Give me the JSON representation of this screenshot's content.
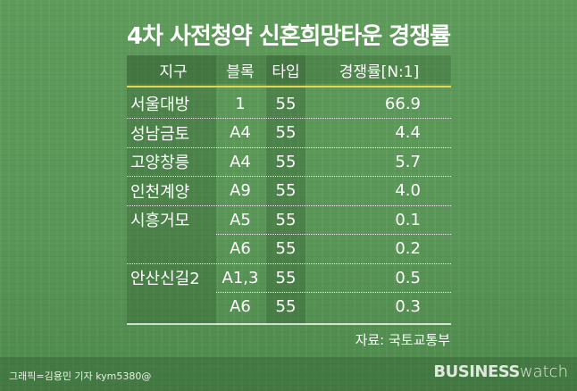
{
  "title": "4차 사전청약 신혼희망타운 경쟁률",
  "table": {
    "headers": [
      "지구",
      "블록",
      "타입",
      "경쟁률[N:1]"
    ],
    "rows": [
      {
        "district": "서울대방",
        "block": "1",
        "type": "55",
        "ratio": "66.9"
      },
      {
        "district": "성남금토",
        "block": "A4",
        "type": "55",
        "ratio": "4.4"
      },
      {
        "district": "고양창릉",
        "block": "A4",
        "type": "55",
        "ratio": "5.7"
      },
      {
        "district": "인천계양",
        "block": "A9",
        "type": "55",
        "ratio": "4.0"
      },
      {
        "district": "시흥거모",
        "block": "A5",
        "type": "55",
        "ratio": "0.1"
      },
      {
        "district": "",
        "block": "A6",
        "type": "55",
        "ratio": "0.2"
      },
      {
        "district": "안산신길2",
        "block": "A1,3",
        "type": "55",
        "ratio": "0.5"
      },
      {
        "district": "",
        "block": "A6",
        "type": "55",
        "ratio": "0.3"
      }
    ]
  },
  "source": "자료: 국토교통부",
  "credit": "그래픽=김용민 기자 kym5380@",
  "logo": {
    "bold": "BUSINESS",
    "light": "watch"
  },
  "colors": {
    "header_rule": "#e6d64a",
    "background": "#5a9657"
  }
}
